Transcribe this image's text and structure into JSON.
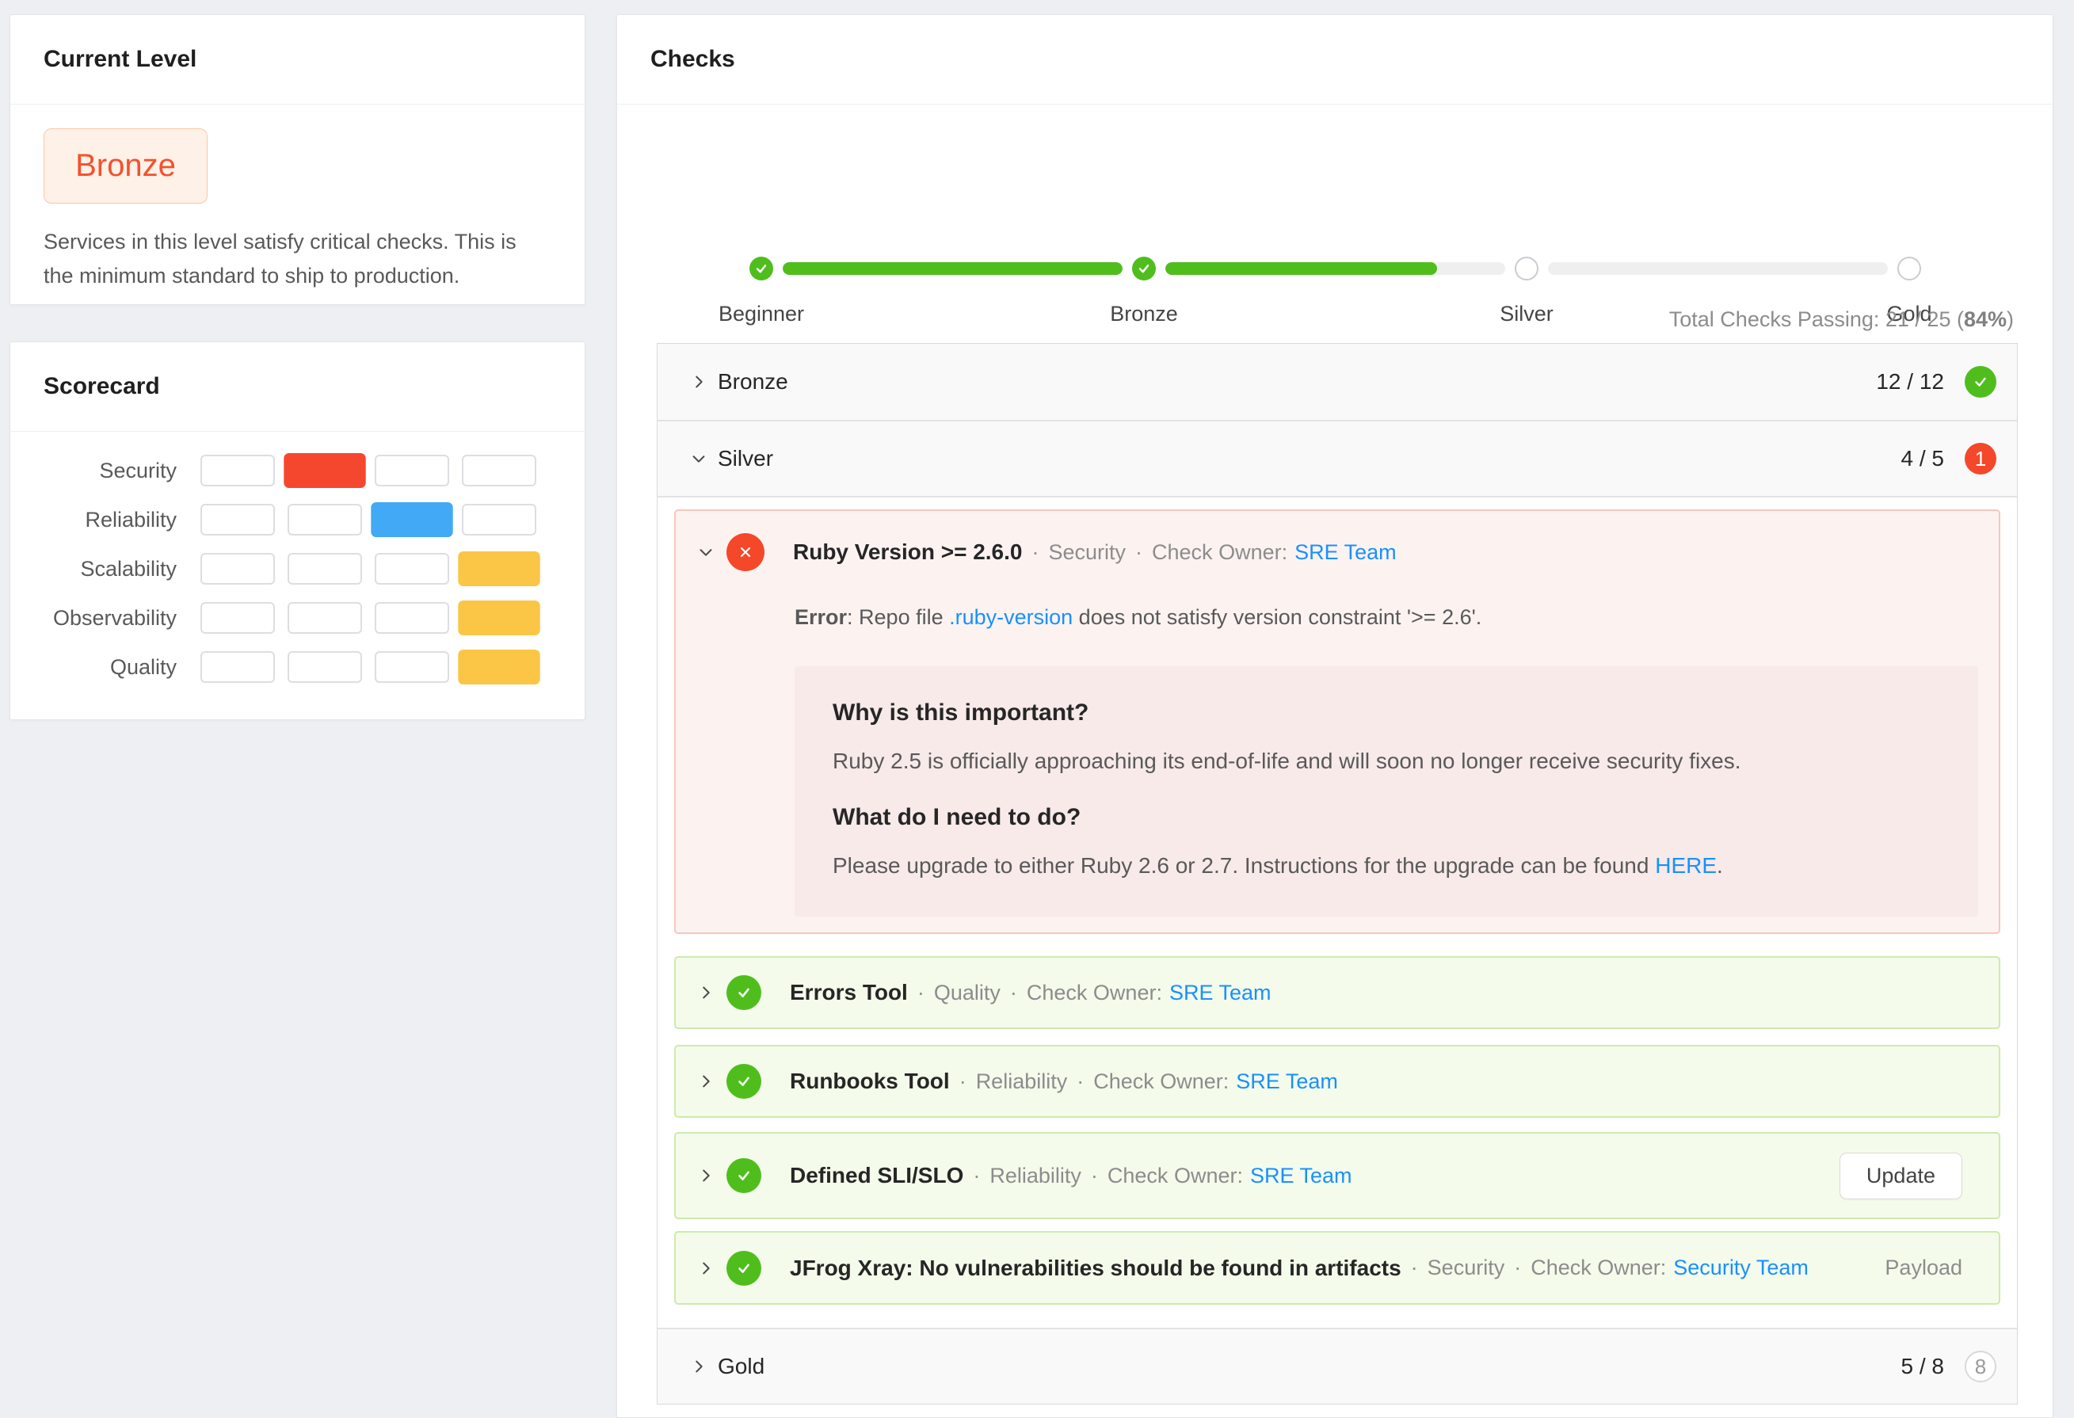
{
  "colors": {
    "success_green": "#4fbe1d",
    "error_red": "#f5472a",
    "link_blue": "#1890ff",
    "bronze_text": "#f5512d",
    "scorecard_red": "#f5472e",
    "scorecard_blue": "#41a9f5",
    "scorecard_yellow": "#fbc646",
    "bar_gray": "#efefef"
  },
  "misc": {
    "dot": "·"
  },
  "current_level": {
    "title": "Current Level",
    "level": "Bronze",
    "description": "Services in this level satisfy critical checks. This is the minimum standard to ship to production."
  },
  "scorecard": {
    "title": "Scorecard",
    "rows": [
      {
        "label": "Security",
        "filled_index": 1,
        "color": "#f5472e"
      },
      {
        "label": "Reliability",
        "filled_index": 2,
        "color": "#41a9f5"
      },
      {
        "label": "Scalability",
        "filled_index": 3,
        "color": "#fbc646"
      },
      {
        "label": "Observability",
        "filled_index": 3,
        "color": "#fbc646"
      },
      {
        "label": "Quality",
        "filled_index": 3,
        "color": "#fbc646"
      }
    ]
  },
  "checks": {
    "title": "Checks",
    "stepper": {
      "steps": [
        {
          "label": "Beginner",
          "state": "complete"
        },
        {
          "label": "Bronze",
          "state": "complete"
        },
        {
          "label": "Silver",
          "state": "incomplete"
        },
        {
          "label": "Gold",
          "state": "incomplete"
        }
      ],
      "bar_fill_pct": [
        100,
        80,
        0
      ]
    },
    "total_summary": {
      "prefix": "Total Checks Passing: 21 / 25 (",
      "bold": "84%",
      "suffix": ")"
    },
    "sections": [
      {
        "name": "Bronze",
        "count": "12 / 12",
        "badge": "check"
      },
      {
        "name": "Silver",
        "count": "4 / 5",
        "badge": "1"
      },
      {
        "name": "Gold",
        "count": "5 / 8",
        "badge": "8"
      }
    ],
    "silver_checks": [
      {
        "status": "fail",
        "title": "Ruby Version >= 2.6.0",
        "category": "Security",
        "owner_label": "Check Owner:",
        "owner": "SRE Team",
        "error": {
          "label": "Error",
          "before_link": ": Repo file ",
          "link": ".ruby-version",
          "after_link": " does not satisfy version constraint '>= 2.6'."
        },
        "details": {
          "heading1": "Why is this important?",
          "para1": "Ruby 2.5 is officially approaching its end-of-life and will soon no longer receive security fixes.",
          "heading2": "What do I need to do?",
          "para2_before": "Please upgrade to either Ruby 2.6 or 2.7. Instructions for the upgrade can be found ",
          "para2_link": "HERE",
          "para2_after": "."
        }
      },
      {
        "status": "pass",
        "title": "Errors Tool",
        "category": "Quality",
        "owner_label": "Check Owner:",
        "owner": "SRE Team"
      },
      {
        "status": "pass",
        "title": "Runbooks Tool",
        "category": "Reliability",
        "owner_label": "Check Owner:",
        "owner": "SRE Team"
      },
      {
        "status": "pass",
        "title": "Defined SLI/SLO",
        "category": "Reliability",
        "owner_label": "Check Owner:",
        "owner": "SRE Team",
        "action": "Update"
      },
      {
        "status": "pass",
        "title": "JFrog Xray: No vulnerabilities should be found in artifacts",
        "category": "Security",
        "owner_label": "Check Owner:",
        "owner": "Security Team",
        "payload_label": "Payload"
      }
    ]
  }
}
